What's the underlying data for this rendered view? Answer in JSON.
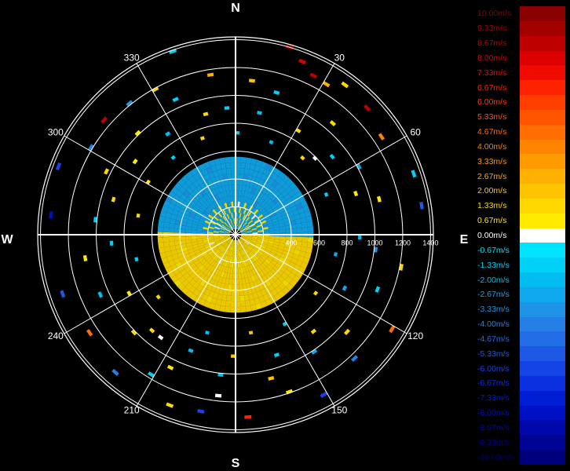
{
  "chart_data": {
    "type": "polar-radar-velocity",
    "cardinals": {
      "n": "N",
      "e": "E",
      "s": "S",
      "w": "W"
    },
    "azimuth_labels": [
      {
        "deg": 30,
        "text": "30"
      },
      {
        "deg": 60,
        "text": "60"
      },
      {
        "deg": 120,
        "text": "120"
      },
      {
        "deg": 150,
        "text": "150"
      },
      {
        "deg": 210,
        "text": "210"
      },
      {
        "deg": 240,
        "text": "240"
      },
      {
        "deg": 300,
        "text": "300"
      },
      {
        "deg": 330,
        "text": "330"
      }
    ],
    "range_tick_labels": [
      "400",
      "600",
      "800",
      "1000",
      "1200",
      "1400"
    ],
    "range_ring_values": [
      200,
      400,
      600,
      800,
      1000,
      1200,
      1400
    ],
    "range_max": 1420,
    "azimuth_grid_step_deg": 30,
    "colorbar": {
      "entries": [
        {
          "label": "10.00m/s",
          "color": "#8b0000"
        },
        {
          "label": "9.33m/s",
          "color": "#a30000"
        },
        {
          "label": "8.67m/s",
          "color": "#bf0000"
        },
        {
          "label": "8.00m/s",
          "color": "#dc0000"
        },
        {
          "label": "7.33m/s",
          "color": "#f00a00"
        },
        {
          "label": "6.67m/s",
          "color": "#ff2200"
        },
        {
          "label": "6.00m/s",
          "color": "#ff3e00"
        },
        {
          "label": "5.33m/s",
          "color": "#ff5500"
        },
        {
          "label": "4.67m/s",
          "color": "#ff6c00"
        },
        {
          "label": "4.00m/s",
          "color": "#ff8400"
        },
        {
          "label": "3.33m/s",
          "color": "#ff9a00"
        },
        {
          "label": "2.67m/s",
          "color": "#ffb000"
        },
        {
          "label": "2.00m/s",
          "color": "#ffc400"
        },
        {
          "label": "1.33m/s",
          "color": "#ffd800"
        },
        {
          "label": "0.67m/s",
          "color": "#ffea00"
        },
        {
          "label": "0.00m/s",
          "color": "#ffffff"
        },
        {
          "label": "-0.67m/s",
          "color": "#00e5ff"
        },
        {
          "label": "-1.33m/s",
          "color": "#00d0f5"
        },
        {
          "label": "-2.00m/s",
          "color": "#00bdf0"
        },
        {
          "label": "-2.67m/s",
          "color": "#10a8ec"
        },
        {
          "label": "-3.33m/s",
          "color": "#1e94e8"
        },
        {
          "label": "-4.00m/s",
          "color": "#2480e6"
        },
        {
          "label": "-4.67m/s",
          "color": "#226ce6"
        },
        {
          "label": "-5.33m/s",
          "color": "#1e58e6"
        },
        {
          "label": "-6.00m/s",
          "color": "#1444e6"
        },
        {
          "label": "-6.67m/s",
          "color": "#0a30e0"
        },
        {
          "label": "-7.33m/s",
          "color": "#001ed6"
        },
        {
          "label": "-8.00m/s",
          "color": "#0010c4"
        },
        {
          "label": "-8.67m/s",
          "color": "#0008ac"
        },
        {
          "label": "-9.33m/s",
          "color": "#000494"
        },
        {
          "label": "-10.00m/s",
          "color": "#00007c"
        }
      ]
    },
    "inner_echo": {
      "range": [
        0,
        560
      ],
      "north_half_velocity": -2.5,
      "south_half_velocity": 1.5,
      "center_velocity": 0.5
    },
    "echo_bins": [
      {
        "az": 340,
        "range": 1380,
        "v": -1.5
      },
      {
        "az": 15,
        "range": 1390,
        "v": 9.5
      },
      {
        "az": 20,
        "range": 1320,
        "v": 8.0
      },
      {
        "az": 25,
        "range": 1260,
        "v": 9.0
      },
      {
        "az": 30,
        "range": 1250,
        "v": 3.0
      },
      {
        "az": 35,
        "range": 1320,
        "v": 1.5
      },
      {
        "az": 45,
        "range": 1300,
        "v": 8.5
      },
      {
        "az": 55,
        "range": 1250,
        "v": 4.0
      },
      {
        "az": 70,
        "range": 1340,
        "v": -1.5
      },
      {
        "az": 80,
        "range": 1340,
        "v": -5.0
      },
      {
        "az": 100,
        "range": 1200,
        "v": 1.5
      },
      {
        "az": 120,
        "range": 1300,
        "v": 5.0
      },
      {
        "az": 135,
        "range": 1220,
        "v": -4.0
      },
      {
        "az": 150,
        "range": 1300,
        "v": -6.0
      },
      {
        "az": 160,
        "range": 1180,
        "v": 1.0
      },
      {
        "az": 175,
        "range": 1300,
        "v": 7.0
      },
      {
        "az": 190,
        "range": 1280,
        "v": -6.0
      },
      {
        "az": 200,
        "range": 1300,
        "v": 1.5
      },
      {
        "az": 210,
        "range": 1160,
        "v": -1.5
      },
      {
        "az": 220,
        "range": 1300,
        "v": -4.0
      },
      {
        "az": 235,
        "range": 1250,
        "v": 4.5
      },
      {
        "az": 250,
        "range": 1300,
        "v": -5.5
      },
      {
        "az": 275,
        "range": 1320,
        "v": -8.0
      },
      {
        "az": 290,
        "range": 1350,
        "v": -6.0
      },
      {
        "az": 300,
        "range": 1200,
        "v": -4.0
      },
      {
        "az": 310,
        "range": 1240,
        "v": 9.0
      },
      {
        "az": 320,
        "range": 1200,
        "v": -3.0
      },
      {
        "az": 330,
        "range": 1180,
        "v": 1.5
      },
      {
        "az": 350,
        "range": 1150,
        "v": 2.5
      },
      {
        "az": 5,
        "range": 1100,
        "v": 2.0
      },
      {
        "az": 15,
        "range": 1050,
        "v": -1.0
      },
      {
        "az": 40,
        "range": 1050,
        "v": 1.5
      },
      {
        "az": 60,
        "range": 1000,
        "v": -2.5
      },
      {
        "az": 75,
        "range": 1050,
        "v": 1.0
      },
      {
        "az": 95,
        "range": 1000,
        "v": -3.0
      },
      {
        "az": 110,
        "range": 1080,
        "v": -1.5
      },
      {
        "az": 130,
        "range": 1050,
        "v": 1.5
      },
      {
        "az": 145,
        "range": 1000,
        "v": -2.5
      },
      {
        "az": 165,
        "range": 1050,
        "v": 2.0
      },
      {
        "az": 185,
        "range": 1000,
        "v": -2.0
      },
      {
        "az": 205,
        "range": 1050,
        "v": 1.0
      },
      {
        "az": 225,
        "range": 1000,
        "v": 1.5
      },
      {
        "az": 245,
        "range": 1050,
        "v": -2.0
      },
      {
        "az": 260,
        "range": 1080,
        "v": 1.0
      },
      {
        "az": 275,
        "range": 1000,
        "v": -1.5
      },
      {
        "az": 295,
        "range": 1020,
        "v": 1.5
      },
      {
        "az": 315,
        "range": 1000,
        "v": 1.0
      },
      {
        "az": 335,
        "range": 1050,
        "v": -1.5
      },
      {
        "az": 355,
        "range": 900,
        "v": -1.0
      },
      {
        "az": 10,
        "range": 880,
        "v": -2.0
      },
      {
        "az": 30,
        "range": 860,
        "v": 1.5
      },
      {
        "az": 50,
        "range": 880,
        "v": -1.5
      },
      {
        "az": 70,
        "range": 900,
        "v": 1.0
      },
      {
        "az": 90,
        "range": 880,
        "v": -2.0
      },
      {
        "az": 115,
        "range": 860,
        "v": -2.5
      },
      {
        "az": 140,
        "range": 880,
        "v": 1.5
      },
      {
        "az": 160,
        "range": 900,
        "v": -1.5
      },
      {
        "az": 180,
        "range": 860,
        "v": 2.0
      },
      {
        "az": 200,
        "range": 880,
        "v": -2.0
      },
      {
        "az": 220,
        "range": 900,
        "v": 1.5
      },
      {
        "az": 240,
        "range": 860,
        "v": 1.0
      },
      {
        "az": 265,
        "range": 880,
        "v": -1.5
      },
      {
        "az": 285,
        "range": 900,
        "v": 1.5
      },
      {
        "az": 305,
        "range": 880,
        "v": 1.0
      },
      {
        "az": 325,
        "range": 860,
        "v": -2.0
      },
      {
        "az": 345,
        "range": 880,
        "v": 1.5
      },
      {
        "az": 0,
        "range": 720,
        "v": -1.5
      },
      {
        "az": 20,
        "range": 700,
        "v": -2.0
      },
      {
        "az": 40,
        "range": 720,
        "v": 1.5
      },
      {
        "az": 65,
        "range": 700,
        "v": -1.5
      },
      {
        "az": 100,
        "range": 720,
        "v": -2.5
      },
      {
        "az": 125,
        "range": 700,
        "v": 1.5
      },
      {
        "az": 150,
        "range": 720,
        "v": -1.0
      },
      {
        "az": 170,
        "range": 700,
        "v": 2.0
      },
      {
        "az": 195,
        "range": 720,
        "v": -2.0
      },
      {
        "az": 230,
        "range": 700,
        "v": 1.5
      },
      {
        "az": 255,
        "range": 720,
        "v": -1.5
      },
      {
        "az": 280,
        "range": 700,
        "v": 1.5
      },
      {
        "az": 300,
        "range": 720,
        "v": 1.0
      },
      {
        "az": 320,
        "range": 700,
        "v": -1.5
      },
      {
        "az": 340,
        "range": 720,
        "v": 1.5
      },
      {
        "az": 185,
        "range": 1150,
        "v": 0.0
      },
      {
        "az": 215,
        "range": 900,
        "v": 0.0
      },
      {
        "az": 45,
        "range": 780,
        "v": 0.0
      }
    ]
  }
}
